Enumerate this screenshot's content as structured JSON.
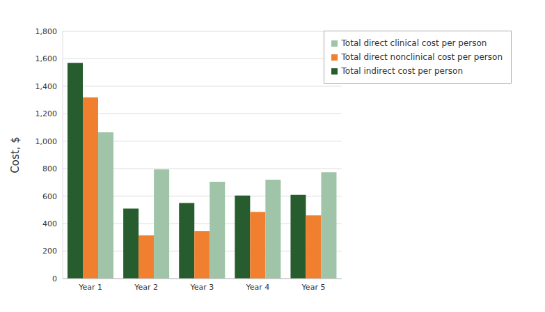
{
  "chart_data": {
    "type": "bar",
    "y_label": "Cost, $",
    "categories": [
      "Year 1",
      "Year 2",
      "Year 3",
      "Year 4",
      "Year 5"
    ],
    "series": [
      {
        "name": "Total indirect cost per person",
        "color": "#265c2e",
        "values": [
          1570,
          510,
          550,
          605,
          610
        ]
      },
      {
        "name": "Total direct nonclinical cost per person",
        "color": "#f08030",
        "values": [
          1320,
          315,
          345,
          485,
          460
        ]
      },
      {
        "name": "Total direct clinical cost per person",
        "color": "#9fc4a8",
        "values": [
          1065,
          795,
          705,
          720,
          775
        ]
      }
    ],
    "ylim": [
      0,
      1800
    ],
    "yticks": [
      0,
      200,
      400,
      600,
      800,
      {
        "value": 1000,
        "label": "1,000"
      },
      {
        "value": 1200,
        "label": "1,200"
      },
      {
        "value": 1400,
        "label": "1,400"
      },
      {
        "value": 1600,
        "label": "1,600"
      },
      {
        "value": 1800,
        "label": "1,800"
      }
    ],
    "grid": true,
    "legend": "upper right"
  }
}
